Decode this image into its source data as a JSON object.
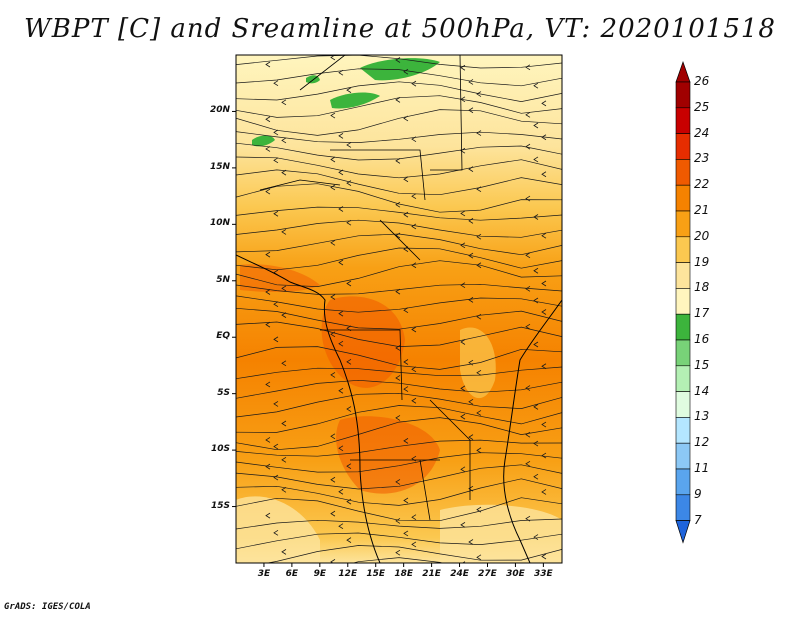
{
  "title": "WBPT [C] and Sreamline at 500hPa, VT: 2020101518",
  "footer": "GrADS: IGES/COLA",
  "map": {
    "lon_range": [
      0,
      35
    ],
    "lat_range": [
      -20,
      25
    ],
    "lon_ticks": [
      {
        "value": 3,
        "label": "3E"
      },
      {
        "value": 6,
        "label": "6E"
      },
      {
        "value": 9,
        "label": "9E"
      },
      {
        "value": 12,
        "label": "12E"
      },
      {
        "value": 15,
        "label": "15E"
      },
      {
        "value": 18,
        "label": "18E"
      },
      {
        "value": 21,
        "label": "21E"
      },
      {
        "value": 24,
        "label": "24E"
      },
      {
        "value": 27,
        "label": "27E"
      },
      {
        "value": 30,
        "label": "30E"
      },
      {
        "value": 33,
        "label": "33E"
      }
    ],
    "lat_ticks": [
      {
        "value": 20,
        "label": "20N"
      },
      {
        "value": 15,
        "label": "15N"
      },
      {
        "value": 10,
        "label": "10N"
      },
      {
        "value": 5,
        "label": "5N"
      },
      {
        "value": 0,
        "label": "EQ"
      },
      {
        "value": -5,
        "label": "5S"
      },
      {
        "value": -10,
        "label": "10S"
      },
      {
        "value": -15,
        "label": "15S"
      }
    ]
  },
  "colorbar": {
    "levels": [
      "26",
      "25",
      "24",
      "23",
      "22",
      "21",
      "20",
      "19",
      "18",
      "17",
      "16",
      "15",
      "14",
      "13",
      "12",
      "11",
      "9",
      "7"
    ],
    "colors": [
      "#a00000",
      "#c80000",
      "#e62d00",
      "#f05a00",
      "#f58200",
      "#f8a015",
      "#fbc850",
      "#fde49c",
      "#fff5be",
      "#3cb43c",
      "#78d278",
      "#b4f0b4",
      "#e0fce0",
      "#b4e6ff",
      "#8cc8f5",
      "#5aa5ee",
      "#3c87e6",
      "#1e64dc"
    ]
  }
}
